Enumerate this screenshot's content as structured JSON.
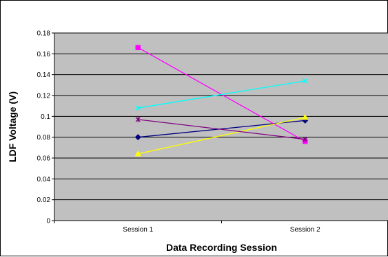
{
  "chart_data": {
    "type": "line",
    "title": "",
    "xlabel": "Data Recording Session",
    "ylabel": "LDF Voltage (V)",
    "categories": [
      "Session 1",
      "Session 2"
    ],
    "ylim": [
      0,
      0.18
    ],
    "yticks": [
      "0",
      "0.02",
      "0.04",
      "0.06",
      "0.08",
      "0.1",
      "0.12",
      "0.14",
      "0.16",
      "0.18"
    ],
    "grid": "horizontal",
    "legend": "none",
    "plot_background": "#c0c0c0",
    "series": [
      {
        "values": [
          0.08,
          0.096
        ],
        "color": "#000080",
        "marker": "diamond"
      },
      {
        "values": [
          0.166,
          0.076
        ],
        "color": "#ff00ff",
        "marker": "square"
      },
      {
        "values": [
          0.064,
          0.099
        ],
        "color": "#ffff00",
        "marker": "triangle"
      },
      {
        "values": [
          0.108,
          0.134
        ],
        "color": "#00ffff",
        "marker": "x"
      },
      {
        "values": [
          0.097,
          0.078
        ],
        "color": "#800080",
        "marker": "star"
      }
    ]
  }
}
